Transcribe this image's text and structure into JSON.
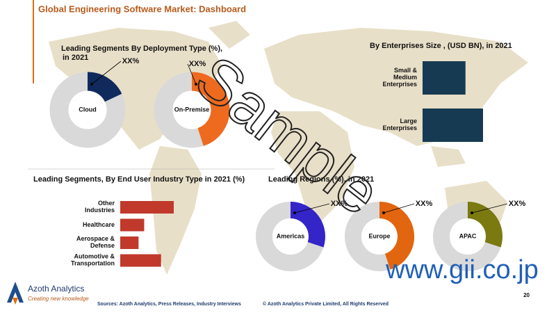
{
  "header": {
    "title": "Global Engineering Software Market: Dashboard"
  },
  "chart_data": [
    {
      "type": "donut",
      "title": "Leading Segments By Deployment Type (%), in 2021",
      "categories": [
        "Cloud",
        "On-Premise"
      ],
      "values": [
        18,
        45
      ],
      "value_labels": [
        "XX%",
        "XX%"
      ],
      "colors": [
        "#0f2a5c",
        "#ee6a1f"
      ]
    },
    {
      "type": "hbar",
      "title": "By Enterprises Size , (USD BN), in 2021",
      "categories": [
        "Small & Medium Enterprises",
        "Large Enterprises"
      ],
      "values": [
        2.2,
        3.1
      ],
      "color": "#163a52"
    },
    {
      "type": "hbar",
      "title": "Leading Segments, By End User Industry Type in 2021 (%)",
      "categories": [
        "Other Industries",
        "Healthcare",
        "Aerospace & Defense",
        "Automotive & Transportation"
      ],
      "values": [
        38,
        17,
        13,
        29
      ],
      "color": "#c0392b"
    },
    {
      "type": "donut",
      "title": "Leading Regions (%), in 2021",
      "categories": [
        "Americas",
        "Europe",
        "APAC"
      ],
      "values": [
        30,
        45,
        30
      ],
      "value_labels": [
        "XX%",
        "XX%",
        "XX%"
      ],
      "colors": [
        "#3325c8",
        "#e2650f",
        "#7a7a10"
      ]
    }
  ],
  "watermark": {
    "text": "Sample",
    "url": "www.gii.co.jp"
  },
  "footer": {
    "brand": "Azoth Analytics",
    "tagline": "Creating new knowledge",
    "sources": "Sources: Azoth Analytics, Press Releases, Industry Interviews",
    "copyright": "© Azoth Analytics Private Limited, All Rights Reserved",
    "page": "20"
  }
}
